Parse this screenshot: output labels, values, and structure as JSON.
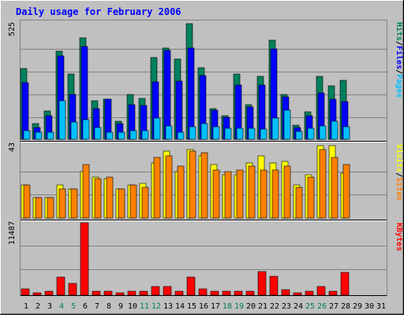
{
  "title": "Daily usage for February 2006",
  "colors": {
    "background": "#C0C0C0",
    "title": "#0000FF",
    "hits": "#00805C",
    "files": "#0000FF",
    "pages": "#00C0FF",
    "visits": "#FFFF00",
    "sites": "#FF8000",
    "kbytes": "#FF0000",
    "separator": "#000000",
    "weekend_day": "#00805C",
    "weekday": "#000000"
  },
  "chart_data": [
    {
      "type": "bar",
      "panel": "hits-files-pages",
      "ymax_label": "525",
      "ylim": [
        0,
        525
      ],
      "categories": [
        1,
        2,
        3,
        4,
        5,
        6,
        7,
        8,
        9,
        10,
        11,
        12,
        13,
        14,
        15,
        16,
        17,
        18,
        19,
        20,
        21,
        22,
        23,
        24,
        25,
        26,
        27,
        28
      ],
      "legend": [
        {
          "text": "Hits",
          "color": "#00805C"
        },
        {
          "text": "/",
          "color": "#000000"
        },
        {
          "text": "Files",
          "color": "#0000FF"
        },
        {
          "text": "/",
          "color": "#000000"
        },
        {
          "text": "Pages",
          "color": "#00C0FF"
        }
      ],
      "series": [
        {
          "name": "Hits",
          "values": [
            318,
            69,
            126,
            394,
            294,
            453,
            173,
            179,
            80,
            200,
            183,
            367,
            408,
            360,
            518,
            322,
            139,
            104,
            292,
            156,
            283,
            443,
            200,
            65,
            122,
            281,
            241,
            263
          ]
        },
        {
          "name": "Files",
          "values": [
            252,
            52,
            104,
            373,
            200,
            416,
            139,
            179,
            69,
            156,
            150,
            256,
            398,
            260,
            409,
            284,
            130,
            100,
            242,
            143,
            244,
            405,
            189,
            52,
            104,
            208,
            180,
            170
          ]
        },
        {
          "name": "Pages",
          "values": [
            40,
            31,
            31,
            171,
            79,
            87,
            52,
            31,
            31,
            40,
            40,
            95,
            60,
            32,
            58,
            69,
            58,
            49,
            51,
            48,
            47,
            95,
            130,
            34,
            48,
            61,
            80,
            58
          ]
        }
      ]
    },
    {
      "type": "bar",
      "panel": "visits-sites",
      "ymax_label": "43",
      "ylim": [
        0,
        43
      ],
      "categories": [
        1,
        2,
        3,
        4,
        5,
        6,
        7,
        8,
        9,
        10,
        11,
        12,
        13,
        14,
        15,
        16,
        17,
        18,
        19,
        20,
        21,
        22,
        23,
        24,
        25,
        26,
        27,
        28
      ],
      "legend": [
        {
          "text": "Visits",
          "color": "#FFFF00"
        },
        {
          "text": "/",
          "color": "#000000"
        },
        {
          "text": "Sites",
          "color": "#FF8000"
        }
      ],
      "series": [
        {
          "name": "Visits",
          "values": [
            19,
            12,
            12,
            19,
            17,
            27,
            24,
            23,
            17,
            19,
            20,
            32,
            39,
            27,
            40,
            36,
            31,
            25,
            25,
            32,
            36,
            32,
            33,
            19,
            25,
            42,
            42,
            26
          ]
        },
        {
          "name": "Sites",
          "values": [
            19,
            12,
            12,
            17,
            17,
            31,
            23,
            24,
            17,
            19,
            18,
            35,
            36,
            30,
            39,
            38,
            28,
            27,
            28,
            30,
            28,
            28,
            30,
            18,
            24,
            40,
            35,
            31
          ]
        }
      ]
    },
    {
      "type": "bar",
      "panel": "kbytes",
      "ymax_label": "11487",
      "ylim": [
        0,
        11487
      ],
      "categories": [
        1,
        2,
        3,
        4,
        5,
        6,
        7,
        8,
        9,
        10,
        11,
        12,
        13,
        14,
        15,
        16,
        17,
        18,
        19,
        20,
        21,
        22,
        23,
        24,
        25,
        26,
        27,
        28
      ],
      "legend": [
        {
          "text": "KBytes",
          "color": "#FF0000"
        }
      ],
      "series": [
        {
          "name": "KBytes",
          "values": [
            1010,
            420,
            630,
            2860,
            1860,
            11487,
            630,
            630,
            420,
            630,
            630,
            1430,
            1430,
            630,
            2860,
            1010,
            630,
            630,
            630,
            630,
            3790,
            2950,
            850,
            420,
            630,
            1350,
            630,
            3620
          ]
        }
      ]
    }
  ],
  "xaxis": {
    "days": [
      {
        "label": "1",
        "weekend": false
      },
      {
        "label": "2",
        "weekend": false
      },
      {
        "label": "3",
        "weekend": false
      },
      {
        "label": "4",
        "weekend": true
      },
      {
        "label": "5",
        "weekend": true
      },
      {
        "label": "6",
        "weekend": false
      },
      {
        "label": "7",
        "weekend": false
      },
      {
        "label": "8",
        "weekend": false
      },
      {
        "label": "9",
        "weekend": false
      },
      {
        "label": "10",
        "weekend": false
      },
      {
        "label": "11",
        "weekend": true
      },
      {
        "label": "12",
        "weekend": true
      },
      {
        "label": "13",
        "weekend": false
      },
      {
        "label": "14",
        "weekend": false
      },
      {
        "label": "15",
        "weekend": false
      },
      {
        "label": "16",
        "weekend": false
      },
      {
        "label": "17",
        "weekend": false
      },
      {
        "label": "18",
        "weekend": true
      },
      {
        "label": "19",
        "weekend": true
      },
      {
        "label": "20",
        "weekend": false
      },
      {
        "label": "21",
        "weekend": false
      },
      {
        "label": "22",
        "weekend": false
      },
      {
        "label": "23",
        "weekend": false
      },
      {
        "label": "24",
        "weekend": false
      },
      {
        "label": "25",
        "weekend": true
      },
      {
        "label": "26",
        "weekend": true
      },
      {
        "label": "27",
        "weekend": false
      },
      {
        "label": "28",
        "weekend": false
      },
      {
        "label": "29",
        "weekend": false
      },
      {
        "label": "30",
        "weekend": false
      },
      {
        "label": "31",
        "weekend": false
      }
    ]
  }
}
